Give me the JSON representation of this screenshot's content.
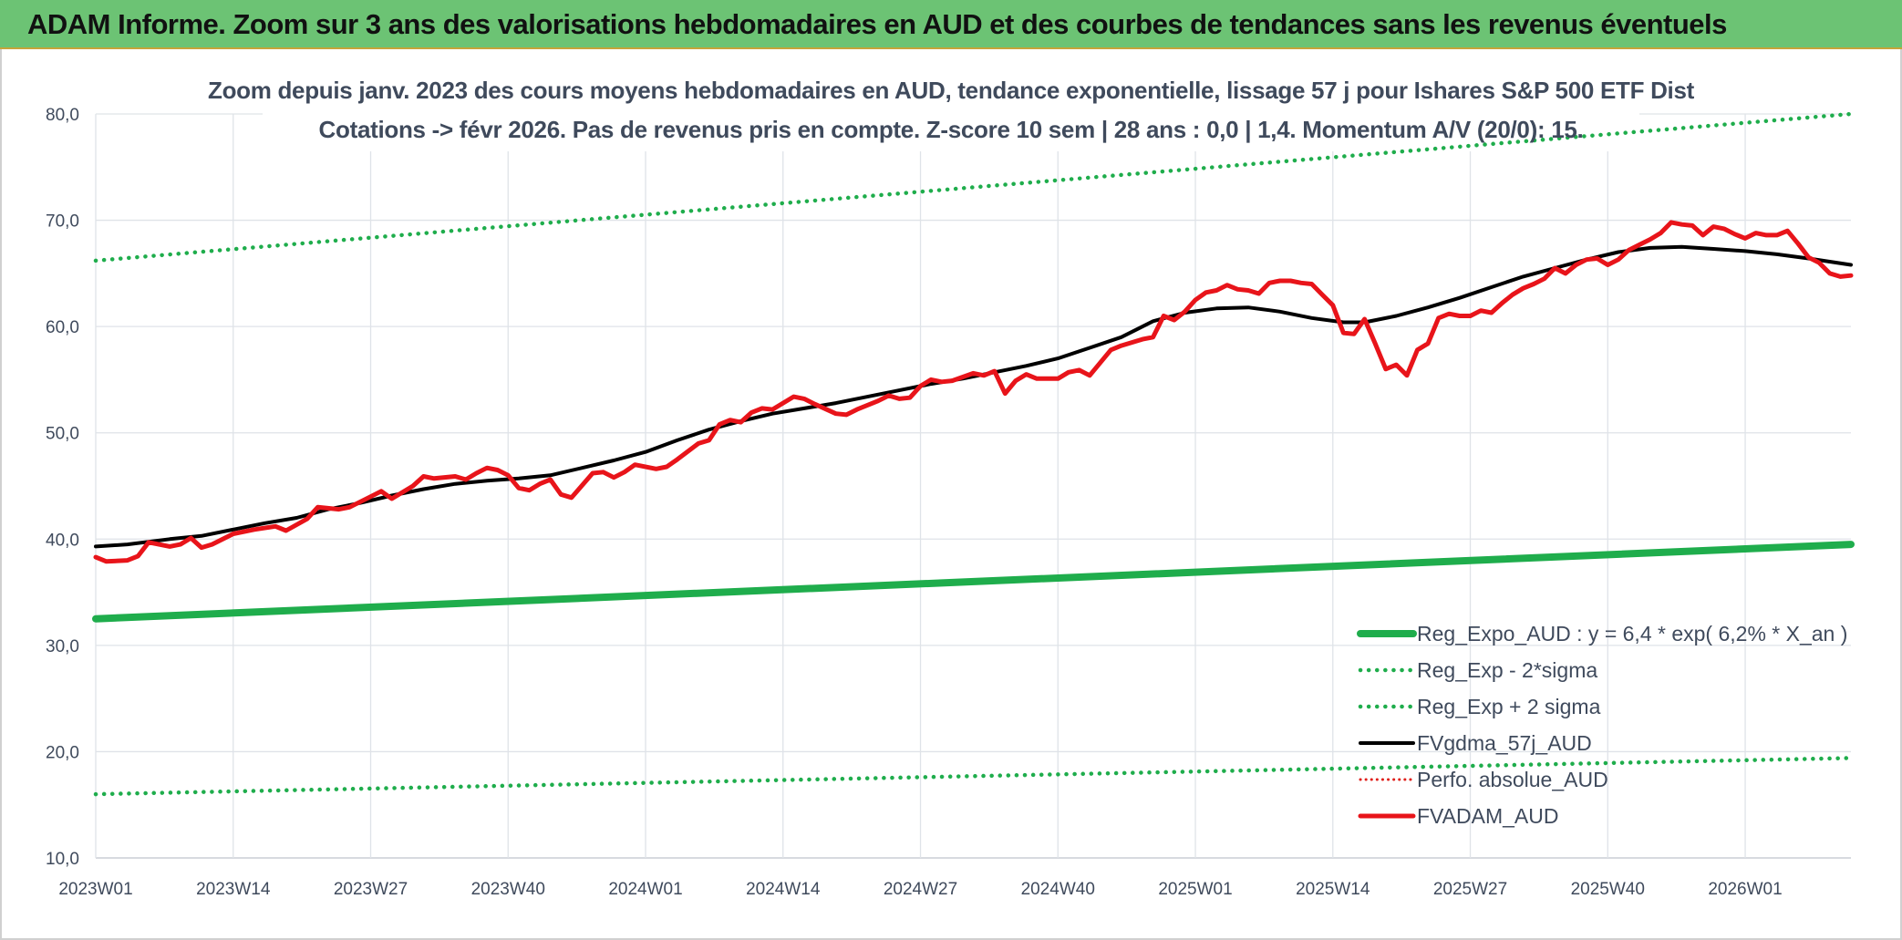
{
  "banner": {
    "title": "ADAM Informe. Zoom sur 3 ans des valorisations hebdomadaires en AUD et des courbes de tendances sans les revenus éventuels"
  },
  "chart_data": {
    "type": "line",
    "title_line1": "Zoom depuis janv. 2023 des cours moyens hebdomadaires en AUD, tendance exponentielle, lissage 57 j pour Ishares S&P 500 ETF Dist",
    "title_line2": "Cotations -> févr 2026. Pas de revenus pris en compte. Z-score 10 sem | 28 ans : 0,0 | 1,4. Momentum A/V (20/0): 15.",
    "xlabel": "",
    "ylabel": "",
    "ylim": [
      10,
      80
    ],
    "y_ticks": [
      "10,0",
      "20,0",
      "30,0",
      "40,0",
      "50,0",
      "60,0",
      "70,0",
      "80,0"
    ],
    "x_ticks": [
      "2023W01",
      "2023W14",
      "2023W27",
      "2023W40",
      "2024W01",
      "2024W14",
      "2024W27",
      "2024W40",
      "2025W01",
      "2025W14",
      "2025W27",
      "2025W40",
      "2026W01"
    ],
    "x_range_weeks": [
      0,
      166
    ],
    "grid": true,
    "legend_position": "bottom-right",
    "colors": {
      "reg_expo": "#1fad4c",
      "reg_minus": "#1fad4c",
      "reg_plus": "#1fad4c",
      "fvgdma": "#000000",
      "perfo": "#e0201b",
      "fvadam": "#e8141a"
    },
    "series": [
      {
        "name": "Reg_Expo_AUD : y = 6,4 * exp( 6,2% *  X_an )",
        "key": "reg_expo",
        "style": "solid-thick",
        "points": [
          [
            0,
            32.5
          ],
          [
            166,
            39.5
          ]
        ]
      },
      {
        "name": "Reg_Exp - 2*sigma",
        "key": "reg_minus",
        "style": "dotted",
        "points": [
          [
            0,
            16.0
          ],
          [
            166,
            19.4
          ]
        ]
      },
      {
        "name": "Reg_Exp + 2 sigma",
        "key": "reg_plus",
        "style": "dotted",
        "points": [
          [
            0,
            66.2
          ],
          [
            166,
            80.0
          ]
        ]
      },
      {
        "name": "FVgdma_57j_AUD",
        "key": "fvgdma",
        "style": "solid",
        "points": [
          [
            0,
            39.3
          ],
          [
            3,
            39.5
          ],
          [
            7,
            40.0
          ],
          [
            10,
            40.3
          ],
          [
            13,
            40.9
          ],
          [
            16,
            41.5
          ],
          [
            19,
            42.0
          ],
          [
            22,
            42.8
          ],
          [
            25,
            43.4
          ],
          [
            28,
            44.1
          ],
          [
            31,
            44.7
          ],
          [
            34,
            45.2
          ],
          [
            37,
            45.5
          ],
          [
            40,
            45.7
          ],
          [
            43,
            46.0
          ],
          [
            46,
            46.7
          ],
          [
            49,
            47.4
          ],
          [
            52,
            48.2
          ],
          [
            55,
            49.3
          ],
          [
            58,
            50.3
          ],
          [
            61,
            51.1
          ],
          [
            64,
            51.8
          ],
          [
            67,
            52.3
          ],
          [
            70,
            52.8
          ],
          [
            73,
            53.4
          ],
          [
            76,
            54.0
          ],
          [
            79,
            54.6
          ],
          [
            82,
            55.1
          ],
          [
            85,
            55.7
          ],
          [
            88,
            56.3
          ],
          [
            91,
            57.0
          ],
          [
            94,
            58.0
          ],
          [
            97,
            59.0
          ],
          [
            100,
            60.5
          ],
          [
            103,
            61.3
          ],
          [
            106,
            61.7
          ],
          [
            109,
            61.8
          ],
          [
            112,
            61.4
          ],
          [
            115,
            60.8
          ],
          [
            118,
            60.4
          ],
          [
            120,
            60.4
          ],
          [
            123,
            61.0
          ],
          [
            126,
            61.8
          ],
          [
            129,
            62.7
          ],
          [
            132,
            63.7
          ],
          [
            135,
            64.7
          ],
          [
            138,
            65.5
          ],
          [
            141,
            66.3
          ],
          [
            144,
            67.0
          ],
          [
            147,
            67.4
          ],
          [
            150,
            67.5
          ],
          [
            153,
            67.3
          ],
          [
            156,
            67.1
          ],
          [
            159,
            66.8
          ],
          [
            162,
            66.4
          ],
          [
            166,
            65.8
          ]
        ]
      },
      {
        "name": "Perfo. absolue_AUD",
        "key": "perfo",
        "style": "dotted-thin",
        "points": []
      },
      {
        "name": "FVADAM_AUD",
        "key": "fvadam",
        "style": "solid-thick",
        "points": [
          [
            0,
            38.3
          ],
          [
            1,
            37.9
          ],
          [
            3,
            38.0
          ],
          [
            4,
            38.4
          ],
          [
            5,
            39.7
          ],
          [
            7,
            39.3
          ],
          [
            8,
            39.5
          ],
          [
            9,
            40.1
          ],
          [
            10,
            39.2
          ],
          [
            11,
            39.5
          ],
          [
            13,
            40.5
          ],
          [
            15,
            40.9
          ],
          [
            17,
            41.2
          ],
          [
            18,
            40.8
          ],
          [
            20,
            41.9
          ],
          [
            21,
            43.0
          ],
          [
            23,
            42.8
          ],
          [
            24,
            43.0
          ],
          [
            26,
            44.0
          ],
          [
            27,
            44.5
          ],
          [
            28,
            43.8
          ],
          [
            30,
            45.0
          ],
          [
            31,
            45.9
          ],
          [
            32,
            45.7
          ],
          [
            34,
            45.9
          ],
          [
            35,
            45.6
          ],
          [
            36,
            46.2
          ],
          [
            37,
            46.7
          ],
          [
            38,
            46.5
          ],
          [
            39,
            46.0
          ],
          [
            40,
            44.8
          ],
          [
            41,
            44.6
          ],
          [
            42,
            45.2
          ],
          [
            43,
            45.6
          ],
          [
            44,
            44.2
          ],
          [
            45,
            43.9
          ],
          [
            47,
            46.2
          ],
          [
            48,
            46.3
          ],
          [
            49,
            45.8
          ],
          [
            50,
            46.3
          ],
          [
            51,
            47.0
          ],
          [
            53,
            46.6
          ],
          [
            54,
            46.8
          ],
          [
            55,
            47.5
          ],
          [
            57,
            49.0
          ],
          [
            58,
            49.3
          ],
          [
            59,
            50.8
          ],
          [
            60,
            51.2
          ],
          [
            61,
            51.0
          ],
          [
            62,
            51.9
          ],
          [
            63,
            52.3
          ],
          [
            64,
            52.2
          ],
          [
            65,
            52.8
          ],
          [
            66,
            53.4
          ],
          [
            67,
            53.2
          ],
          [
            68,
            52.7
          ],
          [
            70,
            51.8
          ],
          [
            71,
            51.7
          ],
          [
            72,
            52.2
          ],
          [
            74,
            53.0
          ],
          [
            75,
            53.5
          ],
          [
            76,
            53.2
          ],
          [
            77,
            53.3
          ],
          [
            78,
            54.4
          ],
          [
            79,
            55.0
          ],
          [
            80,
            54.8
          ],
          [
            81,
            54.9
          ],
          [
            83,
            55.6
          ],
          [
            84,
            55.4
          ],
          [
            85,
            55.8
          ],
          [
            86,
            53.7
          ],
          [
            87,
            54.9
          ],
          [
            88,
            55.5
          ],
          [
            89,
            55.1
          ],
          [
            91,
            55.1
          ],
          [
            92,
            55.7
          ],
          [
            93,
            55.9
          ],
          [
            94,
            55.4
          ],
          [
            96,
            57.8
          ],
          [
            97,
            58.2
          ],
          [
            99,
            58.8
          ],
          [
            100,
            59.0
          ],
          [
            101,
            61.0
          ],
          [
            102,
            60.6
          ],
          [
            103,
            61.4
          ],
          [
            104,
            62.5
          ],
          [
            105,
            63.2
          ],
          [
            106,
            63.4
          ],
          [
            107,
            63.9
          ],
          [
            108,
            63.5
          ],
          [
            109,
            63.4
          ],
          [
            110,
            63.1
          ],
          [
            111,
            64.1
          ],
          [
            112,
            64.3
          ],
          [
            113,
            64.3
          ],
          [
            114,
            64.1
          ],
          [
            115,
            64.0
          ],
          [
            116,
            63.0
          ],
          [
            117,
            62.0
          ],
          [
            118,
            59.4
          ],
          [
            119,
            59.3
          ],
          [
            120,
            60.7
          ],
          [
            121,
            58.4
          ],
          [
            122,
            56.0
          ],
          [
            123,
            56.4
          ],
          [
            124,
            55.4
          ],
          [
            125,
            57.8
          ],
          [
            126,
            58.4
          ],
          [
            127,
            60.8
          ],
          [
            128,
            61.2
          ],
          [
            129,
            61.0
          ],
          [
            130,
            61.0
          ],
          [
            131,
            61.5
          ],
          [
            132,
            61.3
          ],
          [
            133,
            62.2
          ],
          [
            134,
            63.0
          ],
          [
            135,
            63.6
          ],
          [
            136,
            64.0
          ],
          [
            137,
            64.5
          ],
          [
            138,
            65.5
          ],
          [
            139,
            65.0
          ],
          [
            140,
            65.8
          ],
          [
            141,
            66.3
          ],
          [
            142,
            66.4
          ],
          [
            143,
            65.8
          ],
          [
            144,
            66.3
          ],
          [
            145,
            67.2
          ],
          [
            146,
            67.7
          ],
          [
            147,
            68.2
          ],
          [
            148,
            68.8
          ],
          [
            149,
            69.8
          ],
          [
            150,
            69.6
          ],
          [
            151,
            69.5
          ],
          [
            152,
            68.6
          ],
          [
            153,
            69.4
          ],
          [
            154,
            69.2
          ],
          [
            155,
            68.7
          ],
          [
            156,
            68.3
          ],
          [
            157,
            68.8
          ],
          [
            158,
            68.6
          ],
          [
            159,
            68.6
          ],
          [
            160,
            69.0
          ],
          [
            161,
            67.8
          ],
          [
            162,
            66.5
          ],
          [
            163,
            66.0
          ],
          [
            164,
            65.0
          ],
          [
            165,
            64.7
          ],
          [
            166,
            64.8
          ]
        ]
      }
    ]
  }
}
